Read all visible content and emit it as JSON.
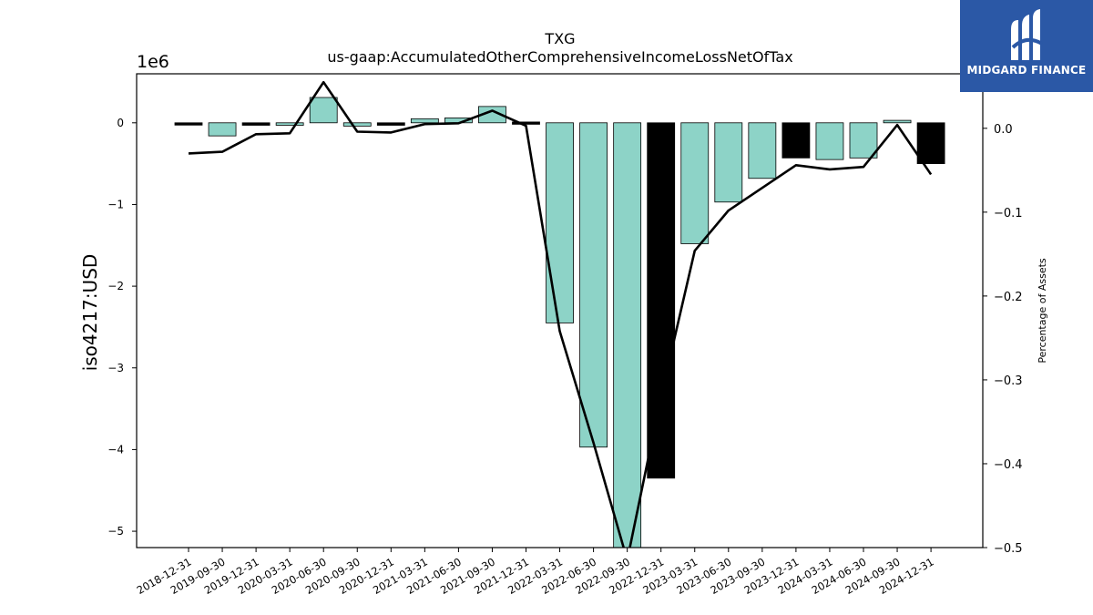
{
  "brand": {
    "name": "MIDGARD FINANCE",
    "mark": "M-logo-icon",
    "bg_color": "#2b58a6"
  },
  "chart_data": {
    "type": "bar",
    "title": "TXG",
    "subtitle": "us-gaap:AccumulatedOtherComprehensiveIncomeLossNetOfTax",
    "ylabel": "iso4217:USD",
    "ylabel_right": "Percentage of Assets",
    "y_offset_label": "1e6",
    "ylim": [
      -5200000,
      600000
    ],
    "ylim_right": [
      -0.5,
      0.065
    ],
    "yticks": [
      0,
      -1,
      -2,
      -3,
      -4,
      -5
    ],
    "yticks_right": [
      "0.0",
      "−0.1",
      "−0.2",
      "−0.3",
      "−0.4",
      "−0.5"
    ],
    "categories": [
      "2018-12-31",
      "2019-09-30",
      "2019-12-31",
      "2020-03-31",
      "2020-06-30",
      "2020-09-30",
      "2020-12-31",
      "2021-03-31",
      "2021-06-30",
      "2021-09-30",
      "2021-12-31",
      "2022-03-31",
      "2022-06-30",
      "2022-09-30",
      "2022-12-31",
      "2023-03-31",
      "2023-06-30",
      "2023-09-30",
      "2023-12-31",
      "2024-03-31",
      "2024-06-30",
      "2024-09-30",
      "2024-12-31"
    ],
    "series": [
      {
        "values": [
          -20000,
          -160000,
          -30000,
          -30000,
          310000,
          -40000,
          -30000,
          50000,
          60000,
          200000,
          10000,
          -2450000,
          -3970000,
          -5200000,
          -4350000,
          -1480000,
          -970000,
          -680000,
          -430000,
          -450000,
          -430000,
          30000,
          -500000
        ],
        "highlight": [
          true,
          false,
          true,
          false,
          false,
          false,
          true,
          false,
          false,
          false,
          true,
          false,
          false,
          false,
          true,
          false,
          false,
          false,
          true,
          false,
          false,
          false,
          true
        ],
        "color": "#8dd3c7",
        "highlight_color": "#000000"
      },
      {
        "axis": "right",
        "values": [
          -0.03,
          -0.028,
          -0.007,
          -0.006,
          0.055,
          -0.004,
          -0.005,
          0.005,
          0.006,
          0.021,
          0.003,
          -0.242,
          -0.375,
          -0.515,
          -0.32,
          -0.146,
          -0.098,
          -0.071,
          -0.044,
          -0.049,
          -0.046,
          0.004,
          -0.055
        ],
        "color": "#000000"
      }
    ]
  }
}
